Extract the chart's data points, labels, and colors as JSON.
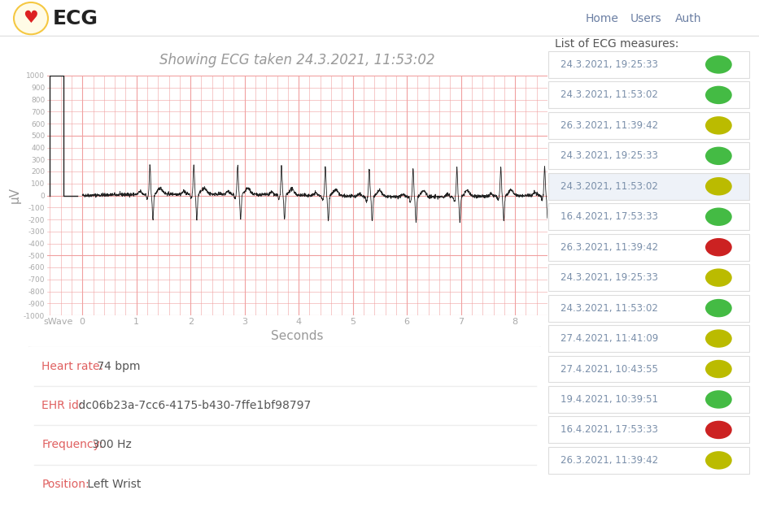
{
  "title": "Showing ECG taken 24.3.2021, 11:53:02",
  "xlabel": "Seconds",
  "ylabel": "μV",
  "ylim": [
    -1000,
    1000
  ],
  "nav_title": "ECG",
  "nav_links": [
    "Home",
    "Users",
    "Auth"
  ],
  "nav_color": "#6b7fa3",
  "ecg_list_title": "List of ECG measures:",
  "ecg_entries": [
    {
      "label": "24.3.2021, 19:25:33",
      "color": "green"
    },
    {
      "label": "24.3.2021, 11:53:02",
      "color": "green"
    },
    {
      "label": "26.3.2021, 11:39:42",
      "color": "yellow"
    },
    {
      "label": "24.3.2021, 19:25:33",
      "color": "green"
    },
    {
      "label": "24.3.2021, 11:53:02",
      "color": "yellow"
    },
    {
      "label": "16.4.2021, 17:53:33",
      "color": "green"
    },
    {
      "label": "26.3.2021, 11:39:42",
      "color": "red"
    },
    {
      "label": "24.3.2021, 19:25:33",
      "color": "yellow"
    },
    {
      "label": "24.3.2021, 11:53:02",
      "color": "green"
    },
    {
      "label": "27.4.2021, 11:41:09",
      "color": "yellow"
    },
    {
      "label": "27.4.2021, 10:43:55",
      "color": "yellow"
    },
    {
      "label": "19.4.2021, 10:39:51",
      "color": "green"
    },
    {
      "label": "16.4.2021, 17:53:33",
      "color": "red"
    },
    {
      "label": "26.3.2021, 11:39:42",
      "color": "yellow"
    }
  ],
  "info_items": [
    {
      "text": "Heart rate: 74 bpm"
    },
    {
      "text": "EHR id: dc06b23a-7cc6-4175-b430-7ffe1bf98797"
    },
    {
      "text": "Frequency: 300 Hz"
    },
    {
      "text": "Position: Left Wrist"
    }
  ],
  "info_colored_prefix": [
    "Heart rate:",
    "EHR id:",
    "Frequency:",
    "Position:"
  ],
  "info_prefix_color": "#e06060",
  "info_value_color": "#555555",
  "grid_color": "#f0a0a0",
  "grid_minor_color": "#f8d0d0",
  "ecg_line_color": "#222222",
  "bg_color": "#ffffff",
  "plot_bg": "#ffffff",
  "axis_tick_color": "#aaaaaa",
  "title_color": "#999999",
  "highlight_row": 4,
  "color_map": {
    "green": "#44bb44",
    "yellow": "#bbbb00",
    "red": "#cc2222"
  }
}
